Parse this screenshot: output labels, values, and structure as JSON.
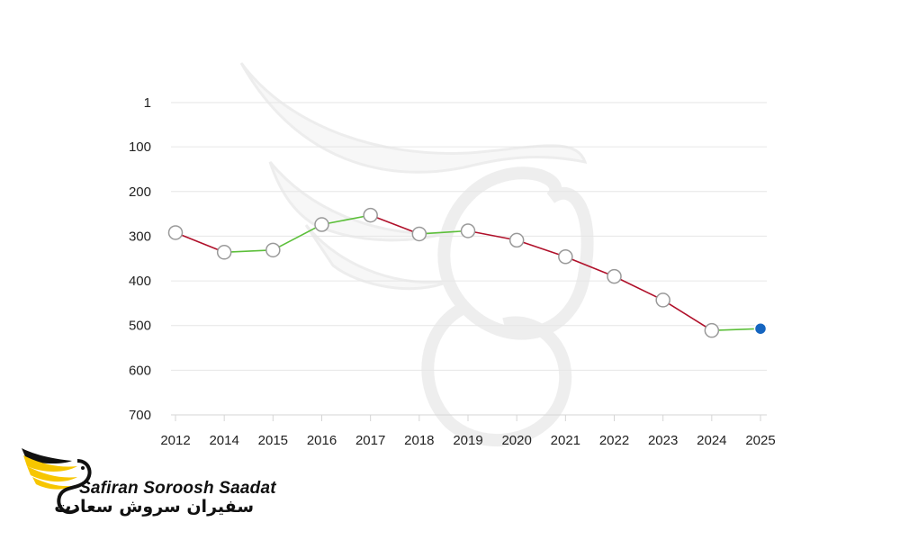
{
  "chart_data": {
    "type": "line",
    "title": "",
    "xlabel": "",
    "ylabel": "",
    "y_reversed": true,
    "ylim": [
      700,
      1
    ],
    "yticks": [
      1,
      100,
      200,
      300,
      400,
      500,
      600,
      700
    ],
    "categories": [
      "2012",
      "2014",
      "2015",
      "2016",
      "2017",
      "2018",
      "2019",
      "2020",
      "2021",
      "2022",
      "2023",
      "2024",
      "2025"
    ],
    "values": [
      292,
      336,
      331,
      274,
      253,
      295,
      288,
      309,
      346,
      390,
      443,
      511,
      507
    ],
    "grid": true,
    "legend": "none",
    "colors": {
      "rising_rank": "#5cbf3a",
      "falling_rank": "#b0102a",
      "marker_fill": "#ffffff",
      "marker_stroke": "#999999",
      "current_marker": "#1565c0",
      "grid": "#e6e6e6",
      "axis": "#d5d5d5"
    }
  },
  "logo": {
    "latin": "Safiran Soroosh Saadat",
    "persian": "سفیران سروش سعادت",
    "colors": {
      "wing": "#f7c600",
      "text": "#111111"
    }
  }
}
